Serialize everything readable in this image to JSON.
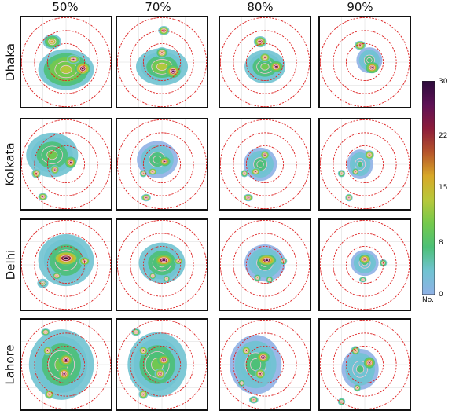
{
  "figure": {
    "columns": [
      "50%",
      "70%",
      "80%",
      "90%"
    ],
    "rows": [
      "Dhaka",
      "Kolkata",
      "Delhi",
      "Lahore"
    ]
  },
  "colorbar": {
    "ticks": [
      "30",
      "22",
      "15",
      "8",
      "0"
    ],
    "unit": "No.",
    "colors": [
      "#8fb1e6",
      "#70c3d2",
      "#4cc077",
      "#74c94c",
      "#b8c83a",
      "#d8a827",
      "#b5542a",
      "#8c1c3b",
      "#5e1155",
      "#2c0b3b"
    ]
  },
  "chart_data": {
    "type": "heatmap",
    "title": "",
    "xlabel": "",
    "ylabel": "",
    "columns": [
      "50%",
      "70%",
      "80%",
      "90%"
    ],
    "rows": [
      "Dhaka",
      "Kolkata",
      "Delhi",
      "Lahore"
    ],
    "colorbar_range": [
      0,
      30
    ],
    "colorbar_ticks": [
      0,
      8,
      15,
      22,
      30
    ],
    "colorbar_label": "No.",
    "range_rings": 3,
    "ring_color": "#dd2222",
    "hotspots": [
      {
        "row": "Dhaka",
        "column": "50%",
        "blobs": [
          [
            0.5,
            0.58,
            0.3,
            0.22,
            14
          ],
          [
            0.35,
            0.28,
            0.1,
            0.08,
            18
          ],
          [
            0.58,
            0.47,
            0.07,
            0.05,
            24
          ],
          [
            0.68,
            0.57,
            0.08,
            0.07,
            30
          ]
        ]
      },
      {
        "row": "Dhaka",
        "column": "70%",
        "blobs": [
          [
            0.5,
            0.55,
            0.28,
            0.2,
            12
          ],
          [
            0.52,
            0.16,
            0.06,
            0.05,
            24
          ],
          [
            0.5,
            0.4,
            0.07,
            0.06,
            20
          ],
          [
            0.62,
            0.6,
            0.08,
            0.07,
            28
          ]
        ]
      },
      {
        "row": "Dhaka",
        "column": "80%",
        "blobs": [
          [
            0.5,
            0.55,
            0.22,
            0.18,
            10
          ],
          [
            0.45,
            0.28,
            0.07,
            0.06,
            24
          ],
          [
            0.5,
            0.45,
            0.06,
            0.05,
            22
          ],
          [
            0.62,
            0.55,
            0.07,
            0.06,
            28
          ]
        ]
      },
      {
        "row": "Dhaka",
        "column": "90%",
        "blobs": [
          [
            0.55,
            0.48,
            0.14,
            0.14,
            8
          ],
          [
            0.45,
            0.32,
            0.06,
            0.05,
            22
          ],
          [
            0.58,
            0.56,
            0.07,
            0.06,
            27
          ]
        ]
      },
      {
        "row": "Kolkata",
        "column": "50%",
        "blobs": [
          [
            0.35,
            0.4,
            0.28,
            0.24,
            10
          ],
          [
            0.55,
            0.48,
            0.06,
            0.06,
            26
          ],
          [
            0.38,
            0.56,
            0.05,
            0.05,
            24
          ],
          [
            0.18,
            0.6,
            0.05,
            0.05,
            22
          ],
          [
            0.25,
            0.85,
            0.05,
            0.04,
            24
          ]
        ]
      },
      {
        "row": "Kolkata",
        "column": "70%",
        "blobs": [
          [
            0.45,
            0.45,
            0.22,
            0.2,
            8
          ],
          [
            0.53,
            0.47,
            0.06,
            0.05,
            26
          ],
          [
            0.4,
            0.58,
            0.05,
            0.04,
            22
          ],
          [
            0.3,
            0.6,
            0.04,
            0.04,
            20
          ],
          [
            0.33,
            0.86,
            0.05,
            0.04,
            24
          ]
        ]
      },
      {
        "row": "Kolkata",
        "column": "80%",
        "blobs": [
          [
            0.45,
            0.5,
            0.18,
            0.18,
            8
          ],
          [
            0.5,
            0.4,
            0.05,
            0.05,
            24
          ],
          [
            0.4,
            0.58,
            0.05,
            0.04,
            22
          ],
          [
            0.28,
            0.6,
            0.04,
            0.04,
            20
          ],
          [
            0.32,
            0.86,
            0.05,
            0.04,
            24
          ]
        ]
      },
      {
        "row": "Kolkata",
        "column": "90%",
        "blobs": [
          [
            0.45,
            0.5,
            0.14,
            0.16,
            6
          ],
          [
            0.55,
            0.4,
            0.05,
            0.05,
            22
          ],
          [
            0.4,
            0.58,
            0.04,
            0.04,
            20
          ],
          [
            0.25,
            0.6,
            0.04,
            0.04,
            18
          ],
          [
            0.33,
            0.86,
            0.04,
            0.04,
            22
          ]
        ]
      },
      {
        "row": "Delhi",
        "column": "50%",
        "blobs": [
          [
            0.5,
            0.45,
            0.3,
            0.28,
            10
          ],
          [
            0.5,
            0.43,
            0.14,
            0.08,
            30
          ],
          [
            0.7,
            0.46,
            0.06,
            0.05,
            22
          ],
          [
            0.4,
            0.62,
            0.05,
            0.04,
            20
          ],
          [
            0.25,
            0.7,
            0.06,
            0.05,
            12
          ]
        ]
      },
      {
        "row": "Delhi",
        "column": "70%",
        "blobs": [
          [
            0.5,
            0.48,
            0.25,
            0.22,
            9
          ],
          [
            0.52,
            0.45,
            0.11,
            0.07,
            28
          ],
          [
            0.68,
            0.46,
            0.05,
            0.04,
            22
          ],
          [
            0.4,
            0.62,
            0.04,
            0.04,
            20
          ],
          [
            0.55,
            0.65,
            0.04,
            0.04,
            18
          ]
        ]
      },
      {
        "row": "Delhi",
        "column": "80%",
        "blobs": [
          [
            0.5,
            0.48,
            0.22,
            0.2,
            8
          ],
          [
            0.52,
            0.45,
            0.1,
            0.06,
            30
          ],
          [
            0.7,
            0.46,
            0.04,
            0.04,
            20
          ],
          [
            0.42,
            0.64,
            0.04,
            0.04,
            18
          ],
          [
            0.55,
            0.66,
            0.04,
            0.04,
            16
          ]
        ]
      },
      {
        "row": "Delhi",
        "column": "90%",
        "blobs": [
          [
            0.5,
            0.48,
            0.15,
            0.14,
            6
          ],
          [
            0.5,
            0.44,
            0.06,
            0.05,
            30
          ],
          [
            0.7,
            0.48,
            0.04,
            0.04,
            16
          ],
          [
            0.48,
            0.66,
            0.04,
            0.03,
            16
          ]
        ]
      },
      {
        "row": "Lahore",
        "column": "50%",
        "blobs": [
          [
            0.45,
            0.5,
            0.35,
            0.38,
            10
          ],
          [
            0.5,
            0.45,
            0.08,
            0.07,
            28
          ],
          [
            0.48,
            0.6,
            0.07,
            0.07,
            27
          ],
          [
            0.3,
            0.35,
            0.05,
            0.05,
            22
          ],
          [
            0.28,
            0.15,
            0.05,
            0.04,
            20
          ],
          [
            0.32,
            0.82,
            0.05,
            0.05,
            22
          ]
        ]
      },
      {
        "row": "Lahore",
        "column": "70%",
        "blobs": [
          [
            0.45,
            0.5,
            0.32,
            0.35,
            9
          ],
          [
            0.52,
            0.45,
            0.07,
            0.06,
            28
          ],
          [
            0.48,
            0.6,
            0.06,
            0.06,
            24
          ],
          [
            0.3,
            0.35,
            0.05,
            0.05,
            22
          ],
          [
            0.22,
            0.15,
            0.05,
            0.04,
            20
          ],
          [
            0.3,
            0.82,
            0.05,
            0.05,
            22
          ]
        ]
      },
      {
        "row": "Lahore",
        "column": "80%",
        "blobs": [
          [
            0.4,
            0.5,
            0.28,
            0.32,
            8
          ],
          [
            0.48,
            0.42,
            0.07,
            0.06,
            28
          ],
          [
            0.45,
            0.6,
            0.06,
            0.06,
            24
          ],
          [
            0.3,
            0.35,
            0.05,
            0.05,
            22
          ],
          [
            0.38,
            0.88,
            0.05,
            0.04,
            20
          ],
          [
            0.25,
            0.7,
            0.04,
            0.04,
            18
          ]
        ]
      },
      {
        "row": "Lahore",
        "column": "90%",
        "blobs": [
          [
            0.45,
            0.55,
            0.2,
            0.22,
            6
          ],
          [
            0.55,
            0.48,
            0.06,
            0.06,
            26
          ],
          [
            0.4,
            0.35,
            0.05,
            0.05,
            20
          ],
          [
            0.42,
            0.75,
            0.04,
            0.04,
            20
          ],
          [
            0.25,
            0.9,
            0.04,
            0.04,
            18
          ]
        ]
      }
    ]
  }
}
